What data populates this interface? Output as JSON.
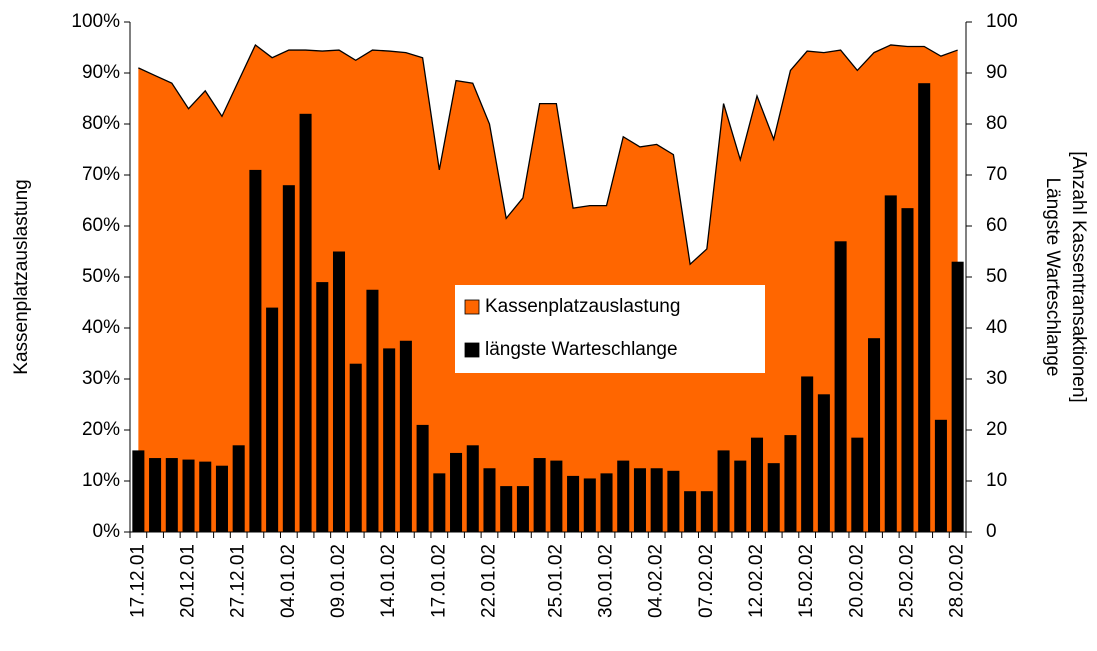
{
  "chart_data": {
    "type": "combo",
    "categories": [
      "17.12.01",
      null,
      null,
      "20.12.01",
      null,
      null,
      "27.12.01",
      null,
      null,
      "04.01.02",
      null,
      null,
      "09.01.02",
      null,
      null,
      "14.01.02",
      null,
      null,
      "17.01.02",
      null,
      null,
      "22.01.02",
      null,
      null,
      null,
      "25.01.02",
      null,
      null,
      "30.01.02",
      null,
      null,
      "04.02.02",
      null,
      null,
      "07.02.02",
      null,
      null,
      "12.02.02",
      null,
      null,
      "15.02.02",
      null,
      null,
      "20.02.02",
      null,
      null,
      "25.02.02",
      null,
      null,
      "28.02.02"
    ],
    "series": [
      {
        "name": "Kassenplatzauslastung",
        "type": "area",
        "color": "#FF6600",
        "axis": "y",
        "values": [
          91,
          89.5,
          88,
          83,
          86.5,
          81.5,
          88.5,
          95.5,
          93,
          94.5,
          94.5,
          94.3,
          94.5,
          92.5,
          94.5,
          94.3,
          94,
          93,
          71,
          88.5,
          88,
          80,
          61.5,
          65.5,
          84,
          84,
          63.5,
          64,
          64,
          77.5,
          75.5,
          76,
          74,
          52.5,
          55.5,
          84,
          73,
          85.5,
          77,
          90.5,
          94.3,
          94,
          94.5,
          90.5,
          94,
          95.5,
          95.2,
          95.2,
          93.3,
          94.5
        ]
      },
      {
        "name": "längste Warteschlange",
        "type": "bar",
        "color": "#000000",
        "axis": "y2",
        "values": [
          16,
          14.5,
          14.5,
          14.2,
          13.8,
          13,
          17,
          71,
          44,
          68,
          82,
          49,
          55,
          33,
          47.5,
          36,
          37.5,
          21,
          11.5,
          15.5,
          17,
          12.5,
          9,
          9,
          14.5,
          14,
          11,
          10.5,
          11.5,
          14,
          12.5,
          12.5,
          12,
          8,
          8,
          16,
          14,
          18.5,
          13.5,
          19,
          30.5,
          27,
          57,
          18.5,
          38,
          66,
          63.5,
          88,
          22,
          53
        ]
      }
    ],
    "ylabel": "Kassenplatzauslastung",
    "y2label": [
      "Längste Warteschlange",
      "[Anzahl Kassentransaktionen]"
    ],
    "ylim": [
      0,
      100
    ],
    "yticks": [
      {
        "value": 0,
        "label": "0%"
      },
      {
        "value": 10,
        "label": "10%"
      },
      {
        "value": 20,
        "label": "20%"
      },
      {
        "value": 30,
        "label": "30%"
      },
      {
        "value": 40,
        "label": "40%"
      },
      {
        "value": 50,
        "label": "50%"
      },
      {
        "value": 60,
        "label": "60%"
      },
      {
        "value": 70,
        "label": "70%"
      },
      {
        "value": 80,
        "label": "80%"
      },
      {
        "value": 90,
        "label": "90%"
      },
      {
        "value": 100,
        "label": "100%"
      }
    ],
    "y2lim": [
      0,
      100
    ],
    "y2ticks": [
      0,
      10,
      20,
      30,
      40,
      50,
      60,
      70,
      80,
      90,
      100
    ],
    "legend": "center"
  }
}
